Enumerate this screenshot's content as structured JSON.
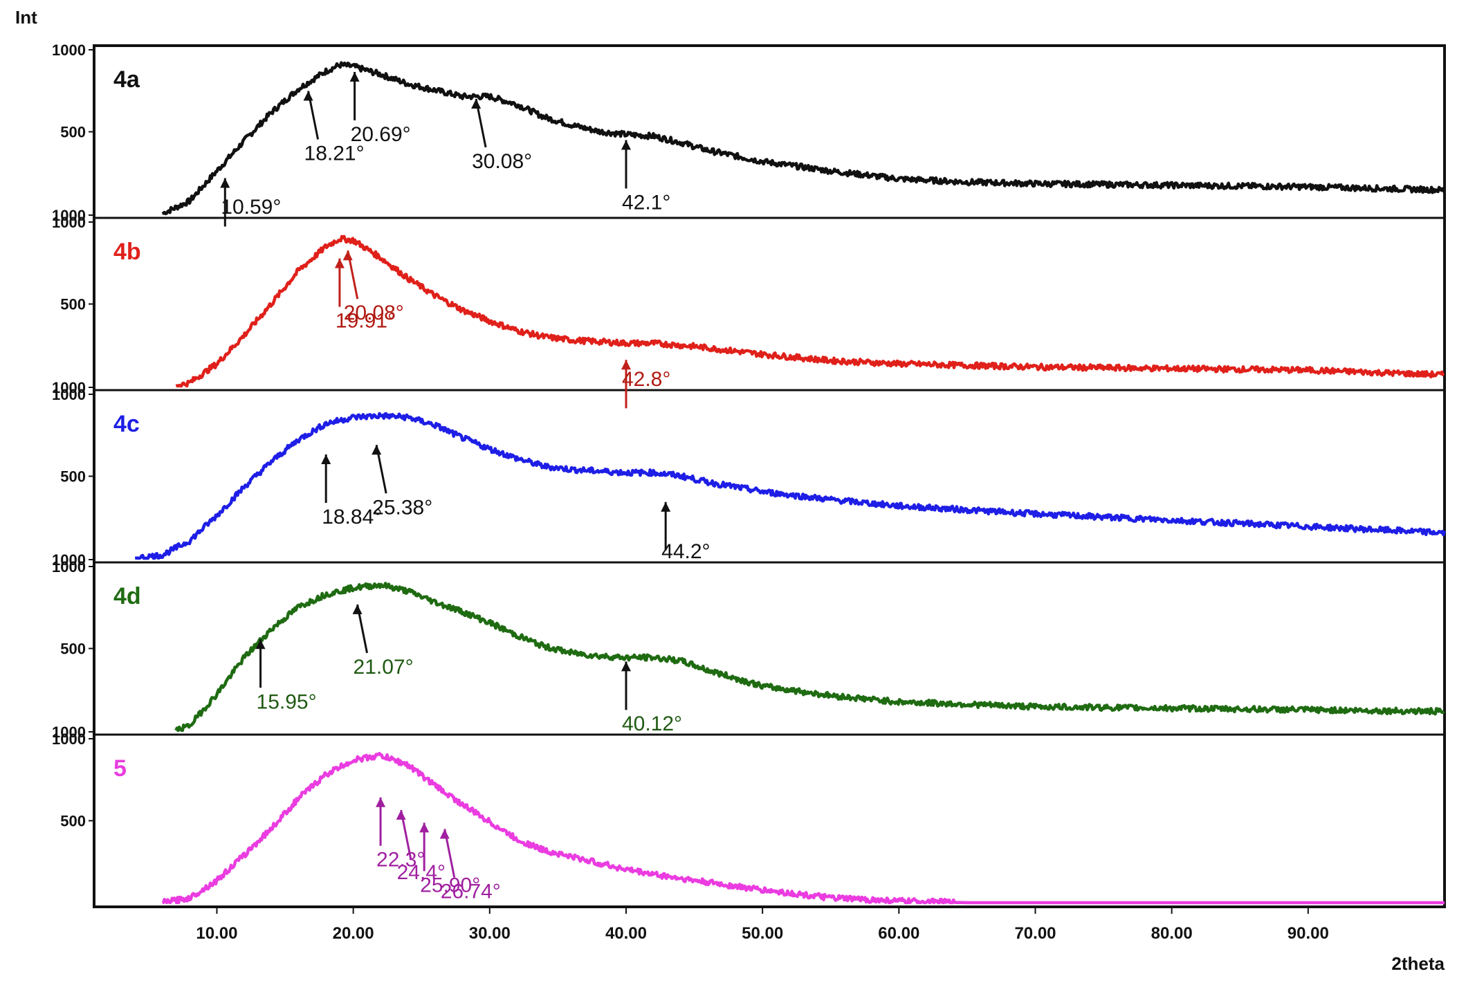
{
  "chart_data": {
    "type": "line",
    "ylabel": "Int",
    "xlabel": "2theta",
    "xlim": [
      1,
      100
    ],
    "x_ticks": [
      10,
      20,
      30,
      40,
      50,
      60,
      70,
      80,
      90
    ],
    "x_tick_labels": [
      "10.00",
      "20.00",
      "30.00",
      "40.00",
      "50.00",
      "60.00",
      "70.00",
      "80.00",
      "90.00"
    ],
    "panels": [
      {
        "name": "4a",
        "color": "#111111",
        "ylim": [
          0,
          1000
        ],
        "y_tick_labels": [
          "1000",
          "500",
          "1000"
        ],
        "x": [
          6,
          8,
          10,
          12,
          14,
          16,
          18,
          19,
          20,
          22,
          24,
          26,
          28,
          30,
          32,
          34,
          36,
          38,
          40,
          42,
          44,
          46,
          50,
          55,
          60,
          65,
          70,
          80,
          90,
          100
        ],
        "values": [
          0,
          80,
          270,
          460,
          640,
          790,
          900,
          940,
          930,
          880,
          820,
          780,
          740,
          740,
          690,
          610,
          560,
          520,
          500,
          490,
          450,
          400,
          330,
          270,
          220,
          200,
          190,
          180,
          170,
          150
        ],
        "annotations": [
          {
            "text": "10.59°",
            "x": 10.6,
            "y": 260
          },
          {
            "text": "18.21°",
            "x": 16.7,
            "y": 810
          },
          {
            "text": "20.69°",
            "x": 20.1,
            "y": 930
          },
          {
            "text": "30.08°",
            "x": 29.0,
            "y": 760
          },
          {
            "text": "42.1°",
            "x": 40.0,
            "y": 500
          }
        ]
      },
      {
        "name": "4b",
        "color": "#e0201a",
        "ylim": [
          0,
          1000
        ],
        "y_tick_labels": [
          "1000",
          "500",
          "1000"
        ],
        "x": [
          7,
          8,
          10,
          12,
          14,
          16,
          18,
          19,
          20,
          22,
          24,
          26,
          28,
          30,
          32,
          34,
          36,
          38,
          40,
          42,
          45,
          50,
          55,
          60,
          70,
          80,
          90,
          100
        ],
        "values": [
          0,
          20,
          140,
          320,
          520,
          730,
          880,
          930,
          920,
          810,
          680,
          570,
          480,
          410,
          350,
          310,
          290,
          280,
          270,
          270,
          250,
          200,
          160,
          140,
          120,
          110,
          100,
          70
        ],
        "annotations": [
          {
            "text": "19.91°",
            "x": 19.0,
            "y": 840
          },
          {
            "text": "20.08°",
            "x": 19.6,
            "y": 890
          },
          {
            "text": "42.8°",
            "x": 40.0,
            "y": 200
          }
        ]
      },
      {
        "name": "4c",
        "color": "#1e1ee6",
        "ylim": [
          0,
          1000
        ],
        "y_tick_labels": [
          "1000",
          "500",
          "1000"
        ],
        "x": [
          4,
          6,
          8,
          10,
          12,
          14,
          16,
          18,
          20,
          22,
          24,
          26,
          28,
          30,
          32,
          34,
          36,
          38,
          40,
          42,
          44,
          46,
          50,
          55,
          60,
          70,
          80,
          90,
          100
        ],
        "values": [
          0,
          20,
          110,
          270,
          450,
          610,
          750,
          850,
          890,
          900,
          890,
          840,
          760,
          690,
          630,
          580,
          560,
          550,
          540,
          540,
          520,
          480,
          420,
          370,
          330,
          280,
          240,
          200,
          160
        ],
        "annotations": [
          {
            "text": "18.84°",
            "x": 18.0,
            "y": 690
          },
          {
            "text": "25.38°",
            "x": 21.7,
            "y": 750
          },
          {
            "text": "44.2°",
            "x": 42.9,
            "y": 390
          }
        ]
      },
      {
        "name": "4d",
        "color": "#1f6b12",
        "ylim": [
          0,
          1000
        ],
        "y_tick_labels": [
          "1000",
          "500",
          "1000"
        ],
        "x": [
          7,
          8,
          10,
          12,
          14,
          16,
          18,
          20,
          22,
          24,
          26,
          28,
          30,
          32,
          34,
          36,
          38,
          40,
          42,
          44,
          46,
          50,
          55,
          60,
          70,
          80,
          90,
          100
        ],
        "values": [
          0,
          30,
          230,
          460,
          640,
          780,
          860,
          900,
          920,
          880,
          810,
          750,
          680,
          600,
          530,
          490,
          470,
          460,
          460,
          440,
          380,
          280,
          220,
          180,
          150,
          140,
          130,
          120
        ],
        "annotations": [
          {
            "text": "15.95°",
            "x": 13.2,
            "y": 610
          },
          {
            "text": "21.07°",
            "x": 20.3,
            "y": 830
          },
          {
            "text": "40.12°",
            "x": 40.0,
            "y": 470
          }
        ]
      },
      {
        "name": "5",
        "color": "#ea3ce0",
        "ylim": [
          0,
          1000
        ],
        "y_tick_labels": [
          "1000",
          "500"
        ],
        "x": [
          6,
          8,
          10,
          12,
          14,
          16,
          18,
          20,
          22,
          24,
          26,
          28,
          30,
          32,
          34,
          36,
          38,
          40,
          42,
          45,
          50,
          55,
          60,
          65,
          70,
          100
        ],
        "values": [
          0,
          30,
          140,
          300,
          470,
          660,
          810,
          900,
          930,
          870,
          740,
          620,
          510,
          400,
          330,
          290,
          250,
          210,
          180,
          140,
          80,
          30,
          10,
          0,
          0,
          0
        ],
        "annotations": [
          {
            "text": "22.3°",
            "x": 22.0,
            "y": 700
          },
          {
            "text": "24.4°",
            "x": 23.5,
            "y": 620
          },
          {
            "text": "25.90°",
            "x": 25.2,
            "y": 540
          },
          {
            "text": "26.74°",
            "x": 26.7,
            "y": 500
          }
        ]
      }
    ]
  }
}
